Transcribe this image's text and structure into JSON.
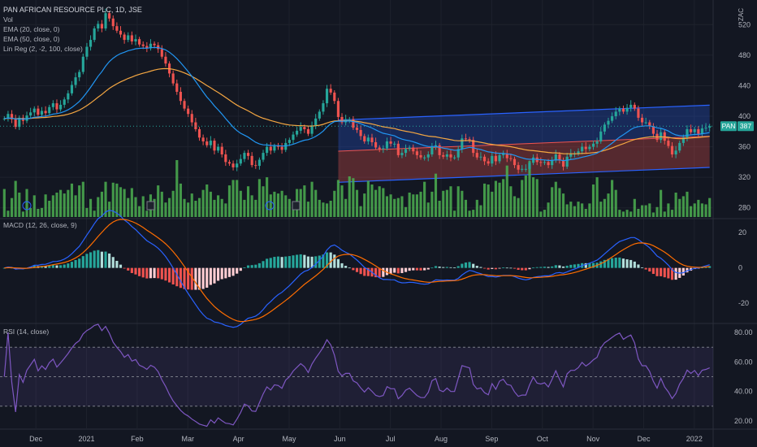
{
  "header": {
    "title": "PAN AFRICAN RESOURCE PLC, 1D, JSE",
    "indicators": [
      "Vol",
      "EMA (20, close, 0)",
      "EMA (50, close, 0)",
      "Lin Reg (2, -2, 100, close)"
    ],
    "currency": "ZAC"
  },
  "price_tag": {
    "symbol": "PAN",
    "value": "387"
  },
  "colors": {
    "background": "#131722",
    "up": "#26a69a",
    "down": "#ef5350",
    "volume": "#4caf50",
    "ema20": "#2196f3",
    "ema50": "#f5a742",
    "macd": "#2962ff",
    "signal": "#ff6d00",
    "rsi": "#7e57c2",
    "channel_upper": "#2962ff",
    "channel_lower": "#ef5350",
    "grid": "#1e222d"
  },
  "chart_data": [
    {
      "type": "candlestick",
      "title": "PAN AFRICAN RESOURCE PLC, 1D, JSE",
      "ylabel": "ZAC",
      "y_ticks": [
        280,
        320,
        360,
        400,
        440,
        480,
        520
      ],
      "ylim": [
        268,
        548
      ],
      "x_tick_labels": [
        "Dec",
        "2021",
        "Feb",
        "Mar",
        "Apr",
        "May",
        "Jun",
        "Jul",
        "Aug",
        "Sep",
        "Oct",
        "Nov",
        "Dec",
        "2022"
      ],
      "last_price": 387,
      "closes": [
        397,
        403,
        396,
        386,
        398,
        394,
        401,
        405,
        410,
        402,
        407,
        404,
        412,
        417,
        409,
        415,
        422,
        430,
        441,
        451,
        458,
        478,
        491,
        500,
        515,
        521,
        515,
        535,
        528,
        518,
        512,
        507,
        500,
        506,
        498,
        501,
        494,
        492,
        489,
        495,
        493,
        488,
        478,
        469,
        456,
        443,
        432,
        420,
        410,
        403,
        392,
        383,
        372,
        367,
        362,
        368,
        355,
        360,
        350,
        340,
        338,
        333,
        338,
        344,
        352,
        348,
        336,
        335,
        343,
        352,
        360,
        355,
        361,
        360,
        356,
        365,
        369,
        376,
        381,
        386,
        383,
        377,
        388,
        397,
        406,
        417,
        436,
        431,
        420,
        399,
        392,
        396,
        396,
        385,
        382,
        374,
        367,
        372,
        366,
        359,
        357,
        358,
        367,
        364,
        364,
        349,
        352,
        357,
        359,
        354,
        349,
        346,
        346,
        350,
        360,
        362,
        349,
        347,
        350,
        346,
        346,
        357,
        371,
        370,
        369,
        352,
        346,
        347,
        341,
        338,
        348,
        341,
        349,
        351,
        345,
        344,
        336,
        330,
        331,
        331,
        339,
        346,
        340,
        339,
        340,
        336,
        342,
        350,
        342,
        334,
        347,
        351,
        351,
        354,
        360,
        357,
        360,
        364,
        367,
        380,
        389,
        394,
        400,
        406,
        410,
        406,
        411,
        415,
        410,
        398,
        392,
        392,
        387,
        377,
        369,
        379,
        368,
        361,
        350,
        355,
        365,
        372,
        383,
        379,
        383,
        377,
        384,
        385,
        387
      ]
    },
    {
      "type": "bar",
      "title": "Vol",
      "values": [
        31,
        7,
        21,
        40,
        27,
        6,
        31,
        10,
        24,
        9,
        10,
        25,
        18,
        24,
        27,
        30,
        26,
        30,
        37,
        24,
        35,
        39,
        10,
        20,
        7,
        22,
        28,
        39,
        17,
        38,
        37,
        33,
        31,
        21,
        32,
        22,
        12,
        23,
        7,
        25,
        20,
        35,
        28,
        16,
        21,
        29,
        63,
        37,
        20,
        16,
        26,
        18,
        21,
        30,
        36,
        28,
        19,
        24,
        20,
        15,
        35,
        41,
        41,
        29,
        19,
        34,
        24,
        19,
        42,
        34,
        44,
        25,
        28,
        26,
        29,
        24,
        20,
        16,
        31,
        31,
        35,
        17,
        39,
        30,
        19,
        16,
        15,
        18,
        29,
        41,
        35,
        20,
        45,
        43,
        30,
        12,
        26,
        40,
        36,
        30,
        34,
        32,
        23,
        25,
        20,
        21,
        23,
        11,
        27,
        25,
        25,
        28,
        39,
        16,
        28,
        48,
        18,
        29,
        30,
        34,
        7,
        34,
        29,
        19,
        7,
        8,
        19,
        13,
        37,
        36,
        28,
        40,
        38,
        42,
        57,
        34,
        23,
        21,
        41,
        46,
        62,
        44,
        42,
        6,
        8,
        16,
        33,
        39,
        32,
        26,
        14,
        17,
        12,
        17,
        15,
        9,
        15,
        36,
        44,
        17,
        20,
        26,
        41,
        30,
        8,
        6,
        8,
        6,
        20,
        9,
        13,
        13,
        15,
        5,
        11,
        30,
        6,
        15,
        8,
        27,
        20,
        23,
        28,
        12,
        15,
        19,
        15,
        14,
        21
      ]
    },
    {
      "type": "bar",
      "title": "MACD (12, 26, close, 9)",
      "y_ticks": [
        -20,
        0,
        20
      ],
      "ylim": [
        -31,
        27
      ]
    },
    {
      "type": "line",
      "title": "RSI (14, close)",
      "y_ticks": [
        20,
        40,
        60,
        80
      ],
      "ylim": [
        15,
        85
      ],
      "bands": [
        30,
        50,
        70
      ]
    }
  ]
}
